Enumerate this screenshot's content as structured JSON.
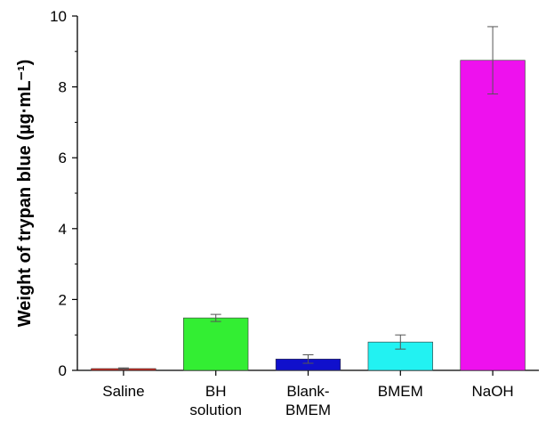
{
  "chart_data": {
    "type": "bar",
    "title": "",
    "xlabel": "",
    "ylabel": "Weight of trypan blue (µg·mL⁻¹)",
    "ylim": [
      0,
      10
    ],
    "yticks": [
      0,
      2,
      4,
      6,
      8,
      10
    ],
    "ytick_labels": [
      "0",
      "2",
      "4",
      "6",
      "8",
      "10"
    ],
    "grid": false,
    "categories": [
      "Saline",
      "BH solution",
      "Blank-BMEM",
      "BMEM",
      "NaOH"
    ],
    "category_lines": [
      [
        "Saline"
      ],
      [
        "BH",
        "solution"
      ],
      [
        "Blank-",
        "BMEM"
      ],
      [
        "BMEM"
      ],
      [
        "NaOH"
      ]
    ],
    "values": [
      0.05,
      1.48,
      0.32,
      0.8,
      8.75
    ],
    "errors": [
      0.02,
      0.1,
      0.12,
      0.2,
      0.95
    ],
    "colors": [
      "#d42a20",
      "#33ee33",
      "#1010cc",
      "#22f2f2",
      "#ee11ee"
    ]
  }
}
